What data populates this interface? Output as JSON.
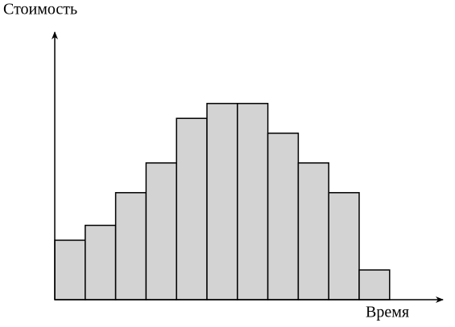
{
  "chart_data": {
    "type": "bar",
    "y_label": "Стоимость",
    "x_label": "Время",
    "categories": [
      null,
      null,
      null,
      null,
      null,
      null,
      null,
      null,
      null,
      null,
      null
    ],
    "values": [
      2,
      2.5,
      3.6,
      4.6,
      6.1,
      6.6,
      6.6,
      5.6,
      4.6,
      3.6,
      1
    ],
    "color": "#d3d3d3",
    "ylim": [
      0,
      9
    ]
  }
}
